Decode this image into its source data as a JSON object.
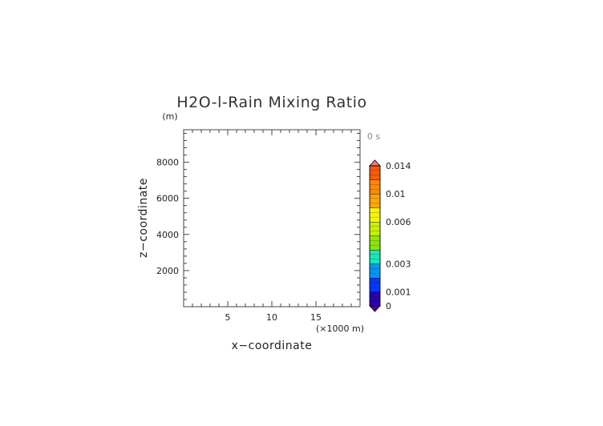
{
  "chart_data": {
    "type": "heatmap",
    "title": "H2O-l-Rain Mixing Ratio",
    "time_label": "0 s",
    "xlabel": "x−coordinate",
    "ylabel": "z−coordinate",
    "x_unit": "(×1000 m)",
    "y_unit": "(m)",
    "xlim": [
      0,
      20
    ],
    "ylim": [
      0,
      9800
    ],
    "x_ticks": [
      5,
      10,
      15
    ],
    "x_tick_labels": [
      "5",
      "10",
      "15"
    ],
    "x_minor_step": 1,
    "y_ticks": [
      2000,
      4000,
      6000,
      8000
    ],
    "y_tick_labels": [
      "2000",
      "4000",
      "6000",
      "8000"
    ],
    "y_minor_step": 400,
    "grid": false,
    "field": "empty",
    "colorbar": {
      "levels": [
        0,
        0.001,
        0.002,
        0.003,
        0.004,
        0.005,
        0.006,
        0.008,
        0.01,
        0.012,
        0.014,
        0.016
      ],
      "colors": [
        "#2a00b0",
        "#0038ff",
        "#0096ff",
        "#18e8b8",
        "#8ae600",
        "#c8f000",
        "#f6f600",
        "#ffa800",
        "#ff8a00",
        "#ff5a00",
        "#ff2a10",
        "#ff7a7a"
      ],
      "labeled_values": [
        0,
        0.001,
        0.003,
        0.006,
        0.01,
        0.014
      ],
      "tick_labels": [
        "0",
        "0.001",
        "0.003",
        "0.006",
        "0.01",
        "0.014"
      ]
    }
  }
}
